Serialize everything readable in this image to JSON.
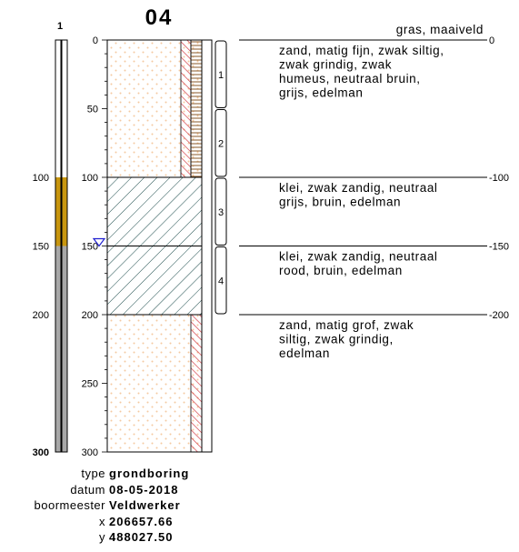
{
  "title": "04",
  "column_header": "1",
  "depth_scale": {
    "max_depth": 300,
    "major_ticks": [
      0,
      50,
      100,
      150,
      200,
      250,
      300
    ],
    "left_labels": [
      "100",
      "150",
      "200",
      "300"
    ],
    "center_labels": [
      "0",
      "50",
      "100",
      "150",
      "200",
      "250",
      "300"
    ],
    "right_labels": [
      "0",
      "-100",
      "-150",
      "-200"
    ]
  },
  "left_column_segments": [
    {
      "from": 0,
      "to": 100,
      "color": "#ffffff"
    },
    {
      "from": 100,
      "to": 150,
      "color": "#c8960f"
    },
    {
      "from": 150,
      "to": 200,
      "color": "#a8a8a8"
    },
    {
      "from": 200,
      "to": 300,
      "color": "#a8a8a8",
      "filter_pipe": true
    }
  ],
  "water_level": 150,
  "lithology": [
    {
      "from": 0,
      "to": 100,
      "pattern": "sand",
      "bands": [
        "red-hatch",
        "brown-ladder"
      ]
    },
    {
      "from": 100,
      "to": 150,
      "pattern": "clay",
      "bands": []
    },
    {
      "from": 150,
      "to": 200,
      "pattern": "clay",
      "bands": []
    },
    {
      "from": 200,
      "to": 300,
      "pattern": "sand",
      "bands": [
        "red-hatch"
      ]
    }
  ],
  "samples": [
    {
      "label": "1",
      "from": 0,
      "to": 50
    },
    {
      "label": "2",
      "from": 50,
      "to": 100
    },
    {
      "label": "3",
      "from": 100,
      "to": 150
    },
    {
      "label": "4",
      "from": 150,
      "to": 200
    }
  ],
  "layer_descriptions": [
    {
      "depth": 0,
      "lines": [
        "zand, matig fijn, zwak siltig,",
        "zwak grindig, zwak",
        "humeus, neutraal bruin,",
        "grijs, edelman"
      ]
    },
    {
      "depth": 100,
      "lines": [
        "klei, zwak zandig, neutraal",
        "grijs, bruin, edelman"
      ]
    },
    {
      "depth": 150,
      "lines": [
        "klei, zwak zandig, neutraal",
        "rood, bruin, edelman"
      ]
    },
    {
      "depth": 200,
      "lines": [
        "zand, matig grof, zwak",
        "siltig, zwak grindig,",
        "edelman"
      ]
    }
  ],
  "surface_label": "gras, maaiveld",
  "colors": {
    "sand_dot": "#f5c9a0",
    "red_hatch": "#d0303a",
    "brown_ladder": "#8a5a2a",
    "water": "#2020d0",
    "filter_blue": "#3a78c8"
  },
  "meta": [
    {
      "label": "type",
      "value": "grondboring"
    },
    {
      "label": "datum",
      "value": "08-05-2018"
    },
    {
      "label": "boormeester",
      "value": "Veldwerker"
    },
    {
      "label": "x",
      "value": "206657.66"
    },
    {
      "label": "y",
      "value": "488027.50"
    }
  ]
}
